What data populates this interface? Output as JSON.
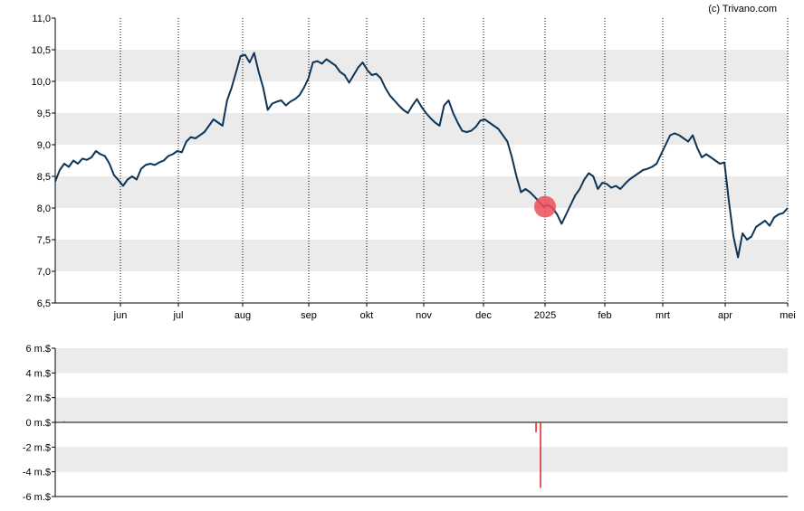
{
  "chart_data": [
    {
      "type": "line",
      "copyright": "(c) Trivano.com",
      "ylim": [
        6.5,
        11.0
      ],
      "y_ticks": [
        "6,5",
        "7,0",
        "7,5",
        "8,0",
        "8,5",
        "9,0",
        "9,5",
        "10,0",
        "10,5",
        "11,0"
      ],
      "x_ticks": [
        "jun",
        "jul",
        "aug",
        "sep",
        "okt",
        "nov",
        "dec",
        "2025",
        "feb",
        "mrt",
        "apr",
        "mei"
      ],
      "grid": true,
      "colors": {
        "line": "#0d3557",
        "band": "#ebebeb",
        "marker": "#ee4c5a"
      },
      "marker": {
        "x_index": 7,
        "value": 8.02
      },
      "series": [
        {
          "values": [
            8.42,
            8.6,
            8.7,
            8.65,
            8.75,
            8.7,
            8.78,
            8.76,
            8.8,
            8.9,
            8.85,
            8.82,
            8.7,
            8.52,
            8.44,
            8.35,
            8.45,
            8.5,
            8.45,
            8.62,
            8.68,
            8.7,
            8.68,
            8.72,
            8.75,
            8.82,
            8.85,
            8.9,
            8.88,
            9.05,
            9.12,
            9.1,
            9.15,
            9.2,
            9.3,
            9.4,
            9.35,
            9.3,
            9.7,
            9.9,
            10.15,
            10.4,
            10.42,
            10.3,
            10.45,
            10.15,
            9.9,
            9.55,
            9.65,
            9.68,
            9.7,
            9.62,
            9.68,
            9.72,
            9.78,
            9.9,
            10.05,
            10.3,
            10.32,
            10.28,
            10.35,
            10.3,
            10.25,
            10.15,
            10.1,
            9.98,
            10.1,
            10.22,
            10.3,
            10.18,
            10.1,
            10.12,
            10.05,
            9.9,
            9.78,
            9.7,
            9.62,
            9.55,
            9.5,
            9.62,
            9.72,
            9.6,
            9.5,
            9.42,
            9.35,
            9.3,
            9.62,
            9.7,
            9.5,
            9.35,
            9.22,
            9.2,
            9.22,
            9.28,
            9.38,
            9.4,
            9.35,
            9.3,
            9.25,
            9.15,
            9.05,
            8.8,
            8.5,
            8.25,
            8.3,
            8.25,
            8.18,
            8.1,
            8.02,
            8.05,
            8.0,
            7.9,
            7.75,
            7.9,
            8.05,
            8.2,
            8.3,
            8.45,
            8.55,
            8.5,
            8.3,
            8.4,
            8.38,
            8.32,
            8.35,
            8.3,
            8.38,
            8.45,
            8.5,
            8.55,
            8.6,
            8.62,
            8.65,
            8.7,
            8.85,
            9.0,
            9.15,
            9.18,
            9.15,
            9.1,
            9.05,
            9.15,
            8.95,
            8.8,
            8.85,
            8.8,
            8.75,
            8.7,
            8.72,
            8.1,
            7.55,
            7.22,
            7.6,
            7.5,
            7.55,
            7.7,
            7.75,
            7.8,
            7.72,
            7.85,
            7.9,
            7.92,
            8.0
          ]
        }
      ]
    },
    {
      "type": "bar",
      "ylim": [
        -6,
        6
      ],
      "y_ticks": [
        "6 m.$",
        "4 m.$",
        "2 m.$",
        "0 m.$",
        "-2 m.$",
        "-4 m.$",
        "-6 m.$"
      ],
      "grid": true,
      "colors": {
        "positive": "#2e7d6b",
        "negative": "#d9202e",
        "zero_line": "#000000"
      },
      "series": [
        {
          "values": [
            0,
            0,
            0.1,
            0,
            0,
            0,
            0,
            0,
            0,
            0,
            0,
            0,
            0,
            0,
            0,
            0,
            0,
            0,
            0,
            0,
            0,
            0,
            0,
            0,
            0,
            0,
            0,
            0,
            0,
            0,
            0,
            0,
            0,
            0,
            0,
            0,
            0,
            0,
            0,
            0,
            0,
            0,
            0,
            0,
            0,
            0,
            0,
            0,
            0,
            0,
            0,
            0,
            0,
            0,
            0,
            0,
            0,
            0,
            0,
            0,
            0,
            0,
            0,
            0,
            0,
            0,
            0,
            0,
            0,
            0,
            0,
            0,
            0,
            0,
            0,
            0,
            0,
            0,
            0,
            0,
            0,
            0,
            0,
            0,
            0,
            0,
            0,
            0,
            0,
            0,
            0,
            0,
            0,
            0,
            0,
            0,
            0,
            0,
            0,
            0,
            0,
            0,
            0,
            0,
            0,
            0,
            0,
            -0.8,
            -5.3,
            0,
            0,
            0,
            0,
            0,
            0,
            0,
            0,
            0,
            0,
            0,
            0,
            0,
            0,
            0,
            0,
            0,
            0,
            0,
            0,
            0,
            0,
            0,
            0,
            0,
            0,
            0,
            0,
            0,
            0,
            0,
            0,
            0,
            0,
            0,
            0,
            0,
            0,
            0,
            0,
            0,
            0,
            0,
            0,
            0,
            0,
            0,
            0,
            0,
            0,
            0,
            0,
            0,
            0,
            0
          ]
        }
      ]
    }
  ]
}
